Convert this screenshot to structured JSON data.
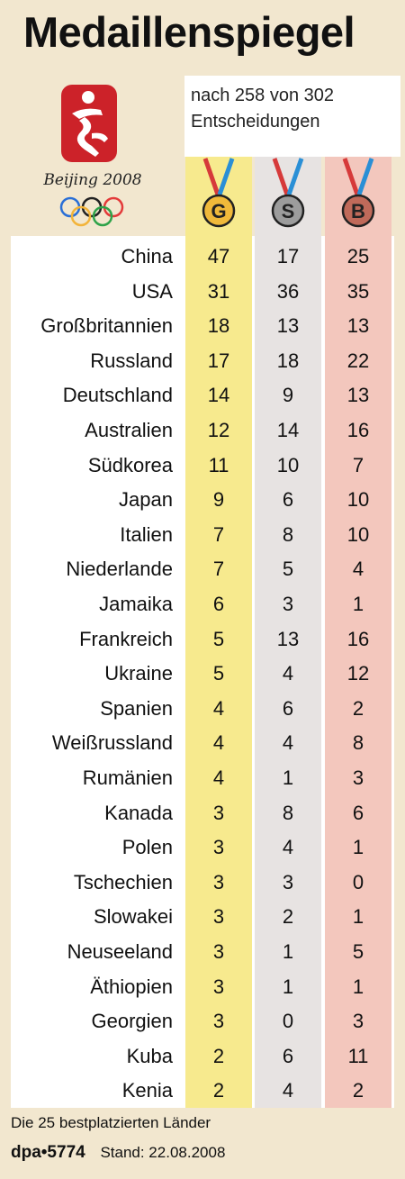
{
  "header": {
    "title": "Medaillenspiegel",
    "subtitle_line1": "nach 258 von 302",
    "subtitle_line2": "Entscheidungen",
    "logo_text": "Beijing 2008"
  },
  "colors": {
    "gold": "#f0b93a",
    "silver": "#9c9c9c",
    "bronze": "#c06a5a",
    "gold_column": "#f7ea8e",
    "silver_column": "#e7e3e2",
    "bronze_column": "#f3c7bd",
    "background": "#f2e7cf",
    "logo_red": "#cc2229"
  },
  "chart_data": {
    "type": "table",
    "title": "Medaillenspiegel",
    "subtitle": "nach 258 von 302 Entscheidungen",
    "columns": [
      "G",
      "S",
      "B"
    ],
    "rows": [
      {
        "country": "China",
        "gold": 47,
        "silver": 17,
        "bronze": 25
      },
      {
        "country": "USA",
        "gold": 31,
        "silver": 36,
        "bronze": 35
      },
      {
        "country": "Großbritannien",
        "gold": 18,
        "silver": 13,
        "bronze": 13
      },
      {
        "country": "Russland",
        "gold": 17,
        "silver": 18,
        "bronze": 22
      },
      {
        "country": "Deutschland",
        "gold": 14,
        "silver": 9,
        "bronze": 13
      },
      {
        "country": "Australien",
        "gold": 12,
        "silver": 14,
        "bronze": 16
      },
      {
        "country": "Südkorea",
        "gold": 11,
        "silver": 10,
        "bronze": 7
      },
      {
        "country": "Japan",
        "gold": 9,
        "silver": 6,
        "bronze": 10
      },
      {
        "country": "Italien",
        "gold": 7,
        "silver": 8,
        "bronze": 10
      },
      {
        "country": "Niederlande",
        "gold": 7,
        "silver": 5,
        "bronze": 4
      },
      {
        "country": "Jamaika",
        "gold": 6,
        "silver": 3,
        "bronze": 1
      },
      {
        "country": "Frankreich",
        "gold": 5,
        "silver": 13,
        "bronze": 16
      },
      {
        "country": "Ukraine",
        "gold": 5,
        "silver": 4,
        "bronze": 12
      },
      {
        "country": "Spanien",
        "gold": 4,
        "silver": 6,
        "bronze": 2
      },
      {
        "country": "Weißrussland",
        "gold": 4,
        "silver": 4,
        "bronze": 8
      },
      {
        "country": "Rumänien",
        "gold": 4,
        "silver": 1,
        "bronze": 3
      },
      {
        "country": "Kanada",
        "gold": 3,
        "silver": 8,
        "bronze": 6
      },
      {
        "country": "Polen",
        "gold": 3,
        "silver": 4,
        "bronze": 1
      },
      {
        "country": "Tschechien",
        "gold": 3,
        "silver": 3,
        "bronze": 0
      },
      {
        "country": "Slowakei",
        "gold": 3,
        "silver": 2,
        "bronze": 1
      },
      {
        "country": "Neuseeland",
        "gold": 3,
        "silver": 1,
        "bronze": 5
      },
      {
        "country": "Äthiopien",
        "gold": 3,
        "silver": 1,
        "bronze": 1
      },
      {
        "country": "Georgien",
        "gold": 3,
        "silver": 0,
        "bronze": 3
      },
      {
        "country": "Kuba",
        "gold": 2,
        "silver": 6,
        "bronze": 11
      },
      {
        "country": "Kenia",
        "gold": 2,
        "silver": 4,
        "bronze": 2
      }
    ]
  },
  "footer": {
    "note": "Die 25 bestplatzierten Länder",
    "source": "dpa•5774",
    "date": "Stand: 22.08.2008"
  }
}
